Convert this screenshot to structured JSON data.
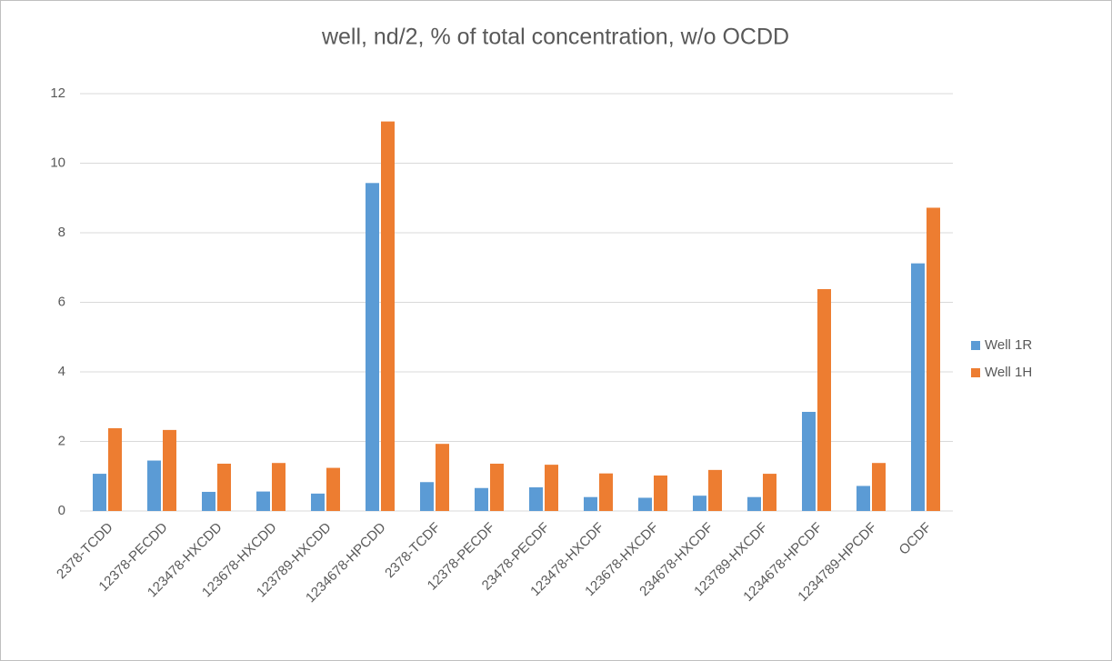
{
  "chart_data": {
    "type": "bar",
    "title": "well, nd/2, % of total concentration, w/o OCDD",
    "categories": [
      "2378-TCDD",
      "12378-PECDD",
      "123478-HXCDD",
      "123678-HXCDD",
      "123789-HXCDD",
      "1234678-HPCDD",
      "2378-TCDF",
      "12378-PECDF",
      "23478-PECDF",
      "123478-HXCDF",
      "123678-HXCDF",
      "234678-HXCDF",
      "123789-HXCDF",
      "1234678-HPCDF",
      "1234789-HPCDF",
      "OCDF"
    ],
    "series": [
      {
        "name": "Well 1R",
        "color": "#5b9bd5",
        "values": [
          1.07,
          1.45,
          0.55,
          0.56,
          0.5,
          9.43,
          0.83,
          0.66,
          0.68,
          0.4,
          0.38,
          0.44,
          0.4,
          2.85,
          0.72,
          7.12
        ]
      },
      {
        "name": "Well 1H",
        "color": "#ed7d31",
        "values": [
          2.38,
          2.33,
          1.36,
          1.38,
          1.24,
          11.2,
          1.93,
          1.36,
          1.33,
          1.08,
          1.02,
          1.18,
          1.07,
          6.38,
          1.38,
          8.72
        ]
      }
    ],
    "ylim": [
      0,
      12
    ],
    "yticks": [
      0,
      2,
      4,
      6,
      8,
      10,
      12
    ],
    "grid": true,
    "legend": "right"
  }
}
